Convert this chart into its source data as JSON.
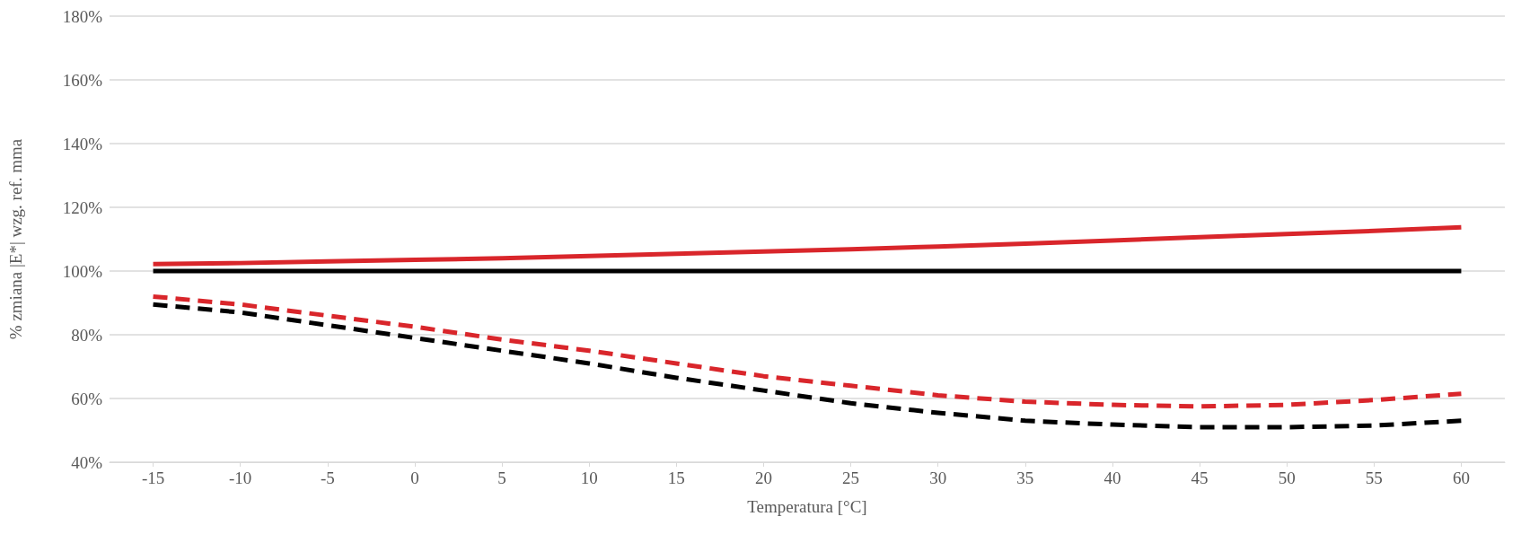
{
  "chart_data": {
    "type": "line",
    "xlabel": "Temperatura [°C]",
    "ylabel": "% zmiana |E*| wzg. ref. mma",
    "categories": [
      "-15",
      "-10",
      "-5",
      "0",
      "5",
      "10",
      "15",
      "20",
      "25",
      "30",
      "35",
      "40",
      "45",
      "50",
      "55",
      "60"
    ],
    "series": [
      {
        "color": "#d9262b",
        "line_style": "solid",
        "values": [
          102.2,
          102.5,
          103,
          103.5,
          104,
          104.7,
          105.4,
          106.1,
          106.8,
          107.7,
          108.6,
          109.6,
          110.6,
          111.6,
          112.6,
          113.7
        ]
      },
      {
        "color": "#000000",
        "line_style": "solid",
        "values": [
          100,
          100,
          100,
          100,
          100,
          100,
          100,
          100,
          100,
          100,
          100,
          100,
          100,
          100,
          100,
          100
        ]
      },
      {
        "color": "#d9262b",
        "line_style": "dashed",
        "values": [
          92,
          89.5,
          86,
          82.5,
          78.5,
          75,
          71,
          67,
          64,
          61,
          59,
          58,
          57.5,
          58,
          59.5,
          61.5
        ]
      },
      {
        "color": "#000000",
        "line_style": "dashed",
        "values": [
          89.5,
          87,
          83,
          79,
          75,
          71,
          66.5,
          62.5,
          58.5,
          55.5,
          53,
          51.8,
          51,
          51,
          51.5,
          53
        ]
      }
    ],
    "ylim": [
      40,
      180
    ],
    "yticks": [
      {
        "value": 40,
        "label": "40%"
      },
      {
        "value": 60,
        "label": "60%"
      },
      {
        "value": 80,
        "label": "80%"
      },
      {
        "value": 100,
        "label": "100%"
      },
      {
        "value": 120,
        "label": "120%"
      },
      {
        "value": 140,
        "label": "140%"
      },
      {
        "value": 160,
        "label": "160%"
      },
      {
        "value": 180,
        "label": "180%"
      }
    ],
    "grid": "y",
    "marker": "none"
  }
}
